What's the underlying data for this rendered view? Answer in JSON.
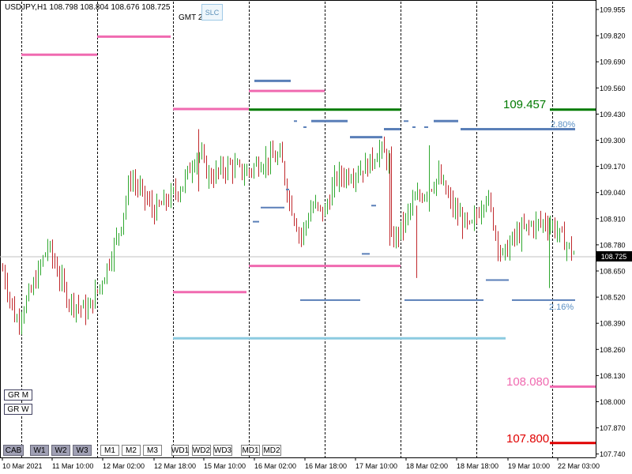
{
  "window": {
    "symbol_header": "USDJPY,H1  108.798 108.804 108.676 108.725",
    "gmt_label": "GMT 2",
    "slc_button": "SLC"
  },
  "chart_data": {
    "type": "candlestick",
    "symbol": "USDJPY",
    "timeframe": "H1",
    "ohlc": {
      "open": 108.798,
      "high": 108.804,
      "low": 108.676,
      "close": 108.725
    },
    "current_price": "108.725",
    "ylim": [
      107.72,
      110.0
    ],
    "y_ticks": [
      "109.955",
      "109.820",
      "109.690",
      "109.560",
      "109.430",
      "109.300",
      "109.170",
      "109.040",
      "108.910",
      "108.780",
      "108.650",
      "108.520",
      "108.390",
      "108.260",
      "108.130",
      "108.000",
      "107.870",
      "107.740"
    ],
    "x_ticks": [
      "10 Mar 2021",
      "11 Mar 10:00",
      "12 Mar 02:00",
      "12 Mar 18:00",
      "15 Mar 10:00",
      "16 Mar 02:00",
      "16 Mar 18:00",
      "17 Mar 10:00",
      "18 Mar 02:00",
      "18 Mar 18:00",
      "19 Mar 10:00",
      "22 Mar 03:00"
    ],
    "grid": "vertical-dashed",
    "colors": {
      "bull": "#2fa82f",
      "bear": "#c0282c",
      "level_blue": "#5a7fb8",
      "level_pink": "#f06ab0",
      "level_green": "#007a00",
      "level_red": "#e00000",
      "level_cyan": "#8ccbe0"
    },
    "levels": [
      {
        "label": "109.457",
        "value": 109.457,
        "color": "#007a00"
      },
      {
        "label": "108.080",
        "value": 108.08,
        "color": "#f06ab0"
      },
      {
        "label": "107.800",
        "value": 107.8,
        "color": "#e00000"
      }
    ],
    "percent_labels": [
      "2.80%",
      "2.16%"
    ]
  },
  "buttons": {
    "side": [
      "GR M",
      "GR W"
    ],
    "bottom": [
      {
        "label": "CAB",
        "style": "active"
      },
      {
        "label": "W1",
        "style": "active"
      },
      {
        "label": "W2",
        "style": "active"
      },
      {
        "label": "W3",
        "style": "active"
      },
      {
        "label": "M1",
        "style": "plain"
      },
      {
        "label": "M2",
        "style": "plain"
      },
      {
        "label": "M3",
        "style": "plain"
      },
      {
        "label": "WD1",
        "style": "plain"
      },
      {
        "label": "WD2",
        "style": "plain"
      },
      {
        "label": "WD3",
        "style": "plain"
      },
      {
        "label": "MD1",
        "style": "plain"
      },
      {
        "label": "MD2",
        "style": "plain"
      }
    ]
  }
}
